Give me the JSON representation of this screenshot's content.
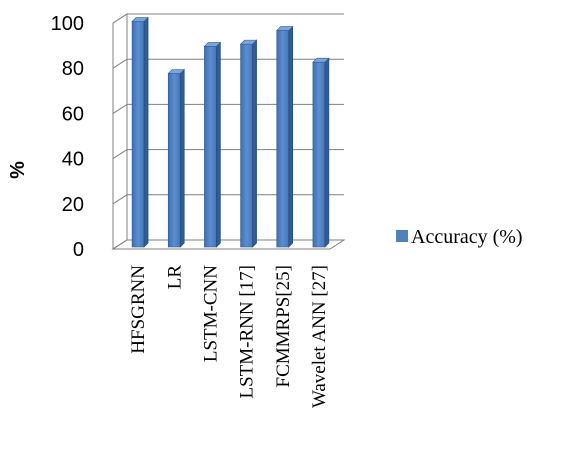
{
  "chart_data": {
    "type": "bar",
    "title": "",
    "xlabel": "",
    "ylabel": "%",
    "ylim": [
      0,
      100
    ],
    "yticks": [
      0,
      20,
      40,
      60,
      80,
      100
    ],
    "grid": true,
    "style": "3d",
    "legend_position": "right",
    "categories": [
      "HFSGRNN",
      "LR",
      "LSTM-CNN",
      "LSTM-RNN [17]",
      "FCMMRPS[25]",
      "Wavelet ANN [27]"
    ],
    "series": [
      {
        "name": "Accuracy (%)",
        "values": [
          98,
          75,
          87,
          88,
          94,
          80
        ],
        "color": "#4F81BD"
      }
    ]
  }
}
